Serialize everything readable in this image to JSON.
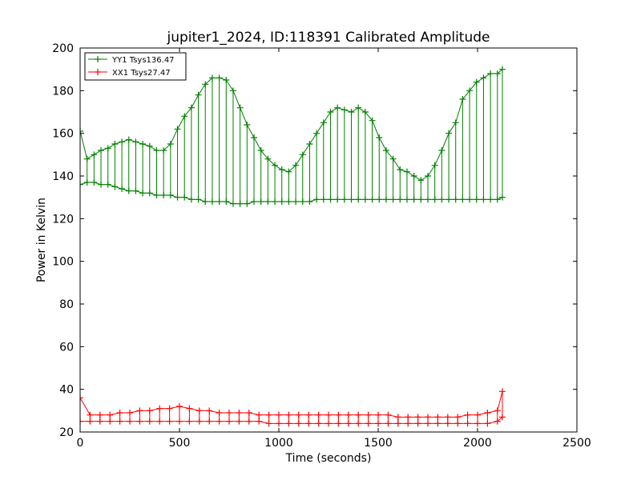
{
  "chart_data": {
    "type": "line",
    "title": "jupiter1_2024, ID:118391 Calibrated Amplitude",
    "xlabel": "Time (seconds)",
    "ylabel": "Power in Kelvin",
    "xlim": [
      0,
      2500
    ],
    "ylim": [
      20,
      200
    ],
    "xticks": [
      "0",
      "500",
      "1000",
      "1500",
      "2000",
      "2500"
    ],
    "yticks": [
      "20",
      "40",
      "60",
      "80",
      "100",
      "120",
      "140",
      "160",
      "180",
      "200"
    ],
    "grid": false,
    "legend_position": "upper-left",
    "marker": "+",
    "series": [
      {
        "name": "YY1 Tsys136.47",
        "color": "#008000",
        "x": [
          0,
          35,
          70,
          105,
          140,
          175,
          210,
          245,
          280,
          315,
          350,
          385,
          420,
          455,
          490,
          525,
          560,
          595,
          630,
          665,
          700,
          735,
          770,
          805,
          840,
          875,
          910,
          945,
          980,
          1015,
          1050,
          1085,
          1120,
          1155,
          1190,
          1225,
          1260,
          1295,
          1330,
          1365,
          1400,
          1435,
          1470,
          1505,
          1540,
          1575,
          1610,
          1645,
          1680,
          1715,
          1750,
          1785,
          1820,
          1855,
          1890,
          1925,
          1960,
          1995,
          2030,
          2065,
          2100,
          2125
        ],
        "low": [
          136,
          137,
          137,
          136,
          136,
          135,
          134,
          133,
          133,
          132,
          132,
          131,
          131,
          131,
          130,
          130,
          129,
          129,
          128,
          128,
          128,
          128,
          127,
          127,
          127,
          128,
          128,
          128,
          128,
          128,
          128,
          128,
          128,
          128,
          129,
          129,
          129,
          129,
          129,
          129,
          129,
          129,
          129,
          129,
          129,
          129,
          129,
          129,
          129,
          129,
          129,
          129,
          129,
          129,
          129,
          129,
          129,
          129,
          129,
          129,
          129,
          130
        ],
        "high": [
          161,
          148,
          150,
          152,
          153,
          155,
          156,
          157,
          156,
          155,
          154,
          152,
          152,
          155,
          162,
          168,
          172,
          178,
          183,
          186,
          186,
          185,
          180,
          172,
          164,
          158,
          152,
          148,
          145,
          143,
          142,
          145,
          150,
          155,
          160,
          165,
          170,
          172,
          171,
          170,
          172,
          170,
          166,
          158,
          152,
          148,
          143,
          142,
          140,
          138,
          140,
          145,
          152,
          160,
          165,
          176,
          180,
          184,
          186,
          188,
          188,
          190
        ]
      },
      {
        "name": "XX1 Tsys27.47",
        "color": "#ff0000",
        "x": [
          0,
          50,
          100,
          150,
          200,
          250,
          300,
          350,
          400,
          450,
          500,
          550,
          600,
          650,
          700,
          750,
          800,
          850,
          900,
          950,
          1000,
          1050,
          1100,
          1150,
          1200,
          1250,
          1300,
          1350,
          1400,
          1450,
          1500,
          1550,
          1600,
          1650,
          1700,
          1750,
          1800,
          1850,
          1900,
          1950,
          2000,
          2050,
          2100,
          2125
        ],
        "low": [
          25,
          25,
          25,
          25,
          25,
          25,
          25,
          25,
          25,
          25,
          25,
          25,
          25,
          25,
          25,
          25,
          25,
          25,
          25,
          24,
          24,
          24,
          24,
          24,
          24,
          24,
          24,
          24,
          24,
          24,
          24,
          24,
          24,
          24,
          24,
          24,
          24,
          24,
          24,
          24,
          24,
          24,
          25,
          27
        ],
        "high": [
          36,
          28,
          28,
          28,
          29,
          29,
          30,
          30,
          31,
          31,
          32,
          31,
          30,
          30,
          29,
          29,
          29,
          29,
          28,
          28,
          28,
          28,
          28,
          28,
          28,
          28,
          28,
          28,
          28,
          28,
          28,
          28,
          27,
          27,
          27,
          27,
          27,
          27,
          27,
          28,
          28,
          29,
          30,
          39
        ]
      }
    ]
  }
}
